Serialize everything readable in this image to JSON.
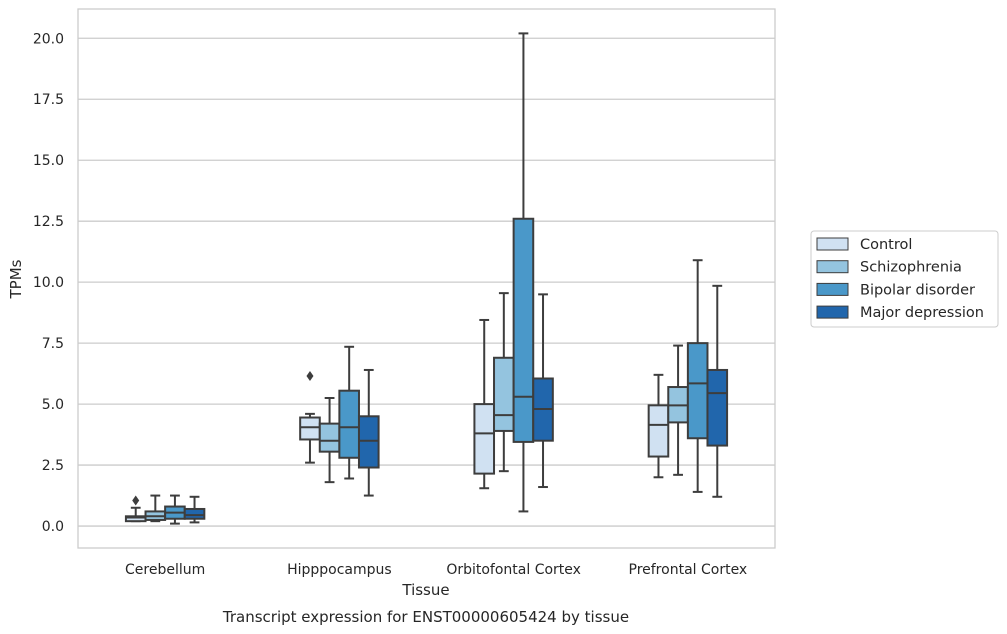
{
  "chart_data": {
    "type": "box",
    "title": "",
    "caption": "Transcript expression for ENST00000605424 by tissue",
    "xlabel": "Tissue",
    "ylabel": "TPMs",
    "ylim": [
      -0.9,
      21.2
    ],
    "yticks": [
      "0.0",
      "2.5",
      "5.0",
      "7.5",
      "10.0",
      "12.5",
      "15.0",
      "17.5",
      "20.0"
    ],
    "grid": "horizontal",
    "legend_position": "right",
    "categories": [
      "Cerebellum",
      "Hipppocampus",
      "Orbitofontal Cortex",
      "Prefrontal Cortex"
    ],
    "series": [
      {
        "name": "Control",
        "color": "#d0e1f2",
        "boxes": [
          {
            "whislo": 0.2,
            "q1": 0.2,
            "med": 0.35,
            "q3": 0.4,
            "whishi": 0.75,
            "fliers": [
              1.05
            ]
          },
          {
            "whislo": 2.6,
            "q1": 3.55,
            "med": 4.05,
            "q3": 4.45,
            "whishi": 4.6,
            "fliers": [
              6.15
            ]
          },
          {
            "whislo": 1.55,
            "q1": 2.15,
            "med": 3.8,
            "q3": 5.0,
            "whishi": 8.45,
            "fliers": []
          },
          {
            "whislo": 2.0,
            "q1": 2.85,
            "med": 4.15,
            "q3": 4.95,
            "whishi": 6.2,
            "fliers": []
          }
        ]
      },
      {
        "name": "Schizophrenia",
        "color": "#94c4df",
        "boxes": [
          {
            "whislo": 0.2,
            "q1": 0.25,
            "med": 0.4,
            "q3": 0.6,
            "whishi": 1.25,
            "fliers": []
          },
          {
            "whislo": 1.8,
            "q1": 3.05,
            "med": 3.5,
            "q3": 4.2,
            "whishi": 5.25,
            "fliers": []
          },
          {
            "whislo": 2.25,
            "q1": 3.9,
            "med": 4.55,
            "q3": 6.9,
            "whishi": 9.55,
            "fliers": []
          },
          {
            "whislo": 2.1,
            "q1": 4.25,
            "med": 4.95,
            "q3": 5.7,
            "whishi": 7.4,
            "fliers": []
          }
        ]
      },
      {
        "name": "Bipolar disorder",
        "color": "#4a98c9",
        "boxes": [
          {
            "whislo": 0.1,
            "q1": 0.3,
            "med": 0.55,
            "q3": 0.8,
            "whishi": 1.25,
            "fliers": []
          },
          {
            "whislo": 1.95,
            "q1": 2.8,
            "med": 4.05,
            "q3": 5.55,
            "whishi": 7.35,
            "fliers": []
          },
          {
            "whislo": 0.6,
            "q1": 3.45,
            "med": 5.3,
            "q3": 12.6,
            "whishi": 20.2,
            "fliers": []
          },
          {
            "whislo": 1.4,
            "q1": 3.6,
            "med": 5.85,
            "q3": 7.5,
            "whishi": 10.9,
            "fliers": []
          }
        ]
      },
      {
        "name": "Major depression",
        "color": "#2166ac",
        "boxes": [
          {
            "whislo": 0.15,
            "q1": 0.3,
            "med": 0.45,
            "q3": 0.7,
            "whishi": 1.2,
            "fliers": []
          },
          {
            "whislo": 1.25,
            "q1": 2.4,
            "med": 3.5,
            "q3": 4.5,
            "whishi": 6.4,
            "fliers": []
          },
          {
            "whislo": 1.6,
            "q1": 3.5,
            "med": 4.8,
            "q3": 6.05,
            "whishi": 9.5,
            "fliers": []
          },
          {
            "whislo": 1.2,
            "q1": 3.3,
            "med": 5.45,
            "q3": 6.4,
            "whishi": 9.85,
            "fliers": []
          }
        ]
      }
    ]
  }
}
